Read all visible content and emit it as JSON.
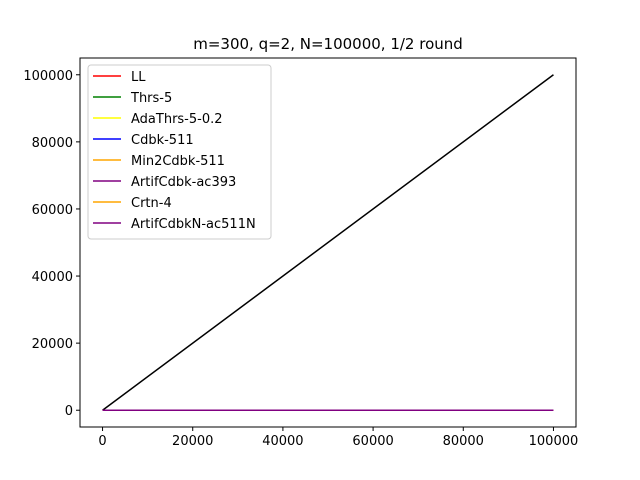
{
  "chart_data": {
    "type": "line",
    "title": "m=300, q=2, N=100000, 1/2 round",
    "xlabel": "",
    "ylabel": "",
    "xlim": [
      -5000,
      105000
    ],
    "ylim": [
      -5000,
      105000
    ],
    "x_ticks": [
      0,
      20000,
      40000,
      60000,
      80000,
      100000
    ],
    "y_ticks": [
      0,
      20000,
      40000,
      60000,
      80000,
      100000
    ],
    "grid": false,
    "legend_position": "top-left",
    "series": [
      {
        "name": "LL",
        "color": "#ff0000",
        "x": [
          0,
          100000
        ],
        "y": [
          0,
          0
        ]
      },
      {
        "name": "Thrs-5",
        "color": "#008000",
        "x": [
          0,
          100000
        ],
        "y": [
          0,
          0
        ]
      },
      {
        "name": "AdaThrs-5-0.2",
        "color": "#ffff00",
        "x": [
          0,
          100000
        ],
        "y": [
          0,
          0
        ]
      },
      {
        "name": "Cdbk-511",
        "color": "#0000ff",
        "x": [
          0,
          100000
        ],
        "y": [
          0,
          0
        ]
      },
      {
        "name": "Min2Cdbk-511",
        "color": "#ffa500",
        "x": [
          0,
          100000
        ],
        "y": [
          0,
          0
        ]
      },
      {
        "name": "ArtifCdbk-ac393",
        "color": "#800080",
        "x": [
          0,
          100000
        ],
        "y": [
          0,
          0
        ]
      },
      {
        "name": "Crtn-4",
        "color": "#ffa500",
        "x": [
          0,
          100000
        ],
        "y": [
          0,
          0
        ]
      },
      {
        "name": "ArtifCdbkN-ac511N",
        "color": "#800080",
        "x": [
          0,
          100000
        ],
        "y": [
          0,
          0
        ]
      }
    ],
    "reference_line": {
      "color": "#000000",
      "x": [
        0,
        100000
      ],
      "y": [
        0,
        100000
      ]
    }
  }
}
